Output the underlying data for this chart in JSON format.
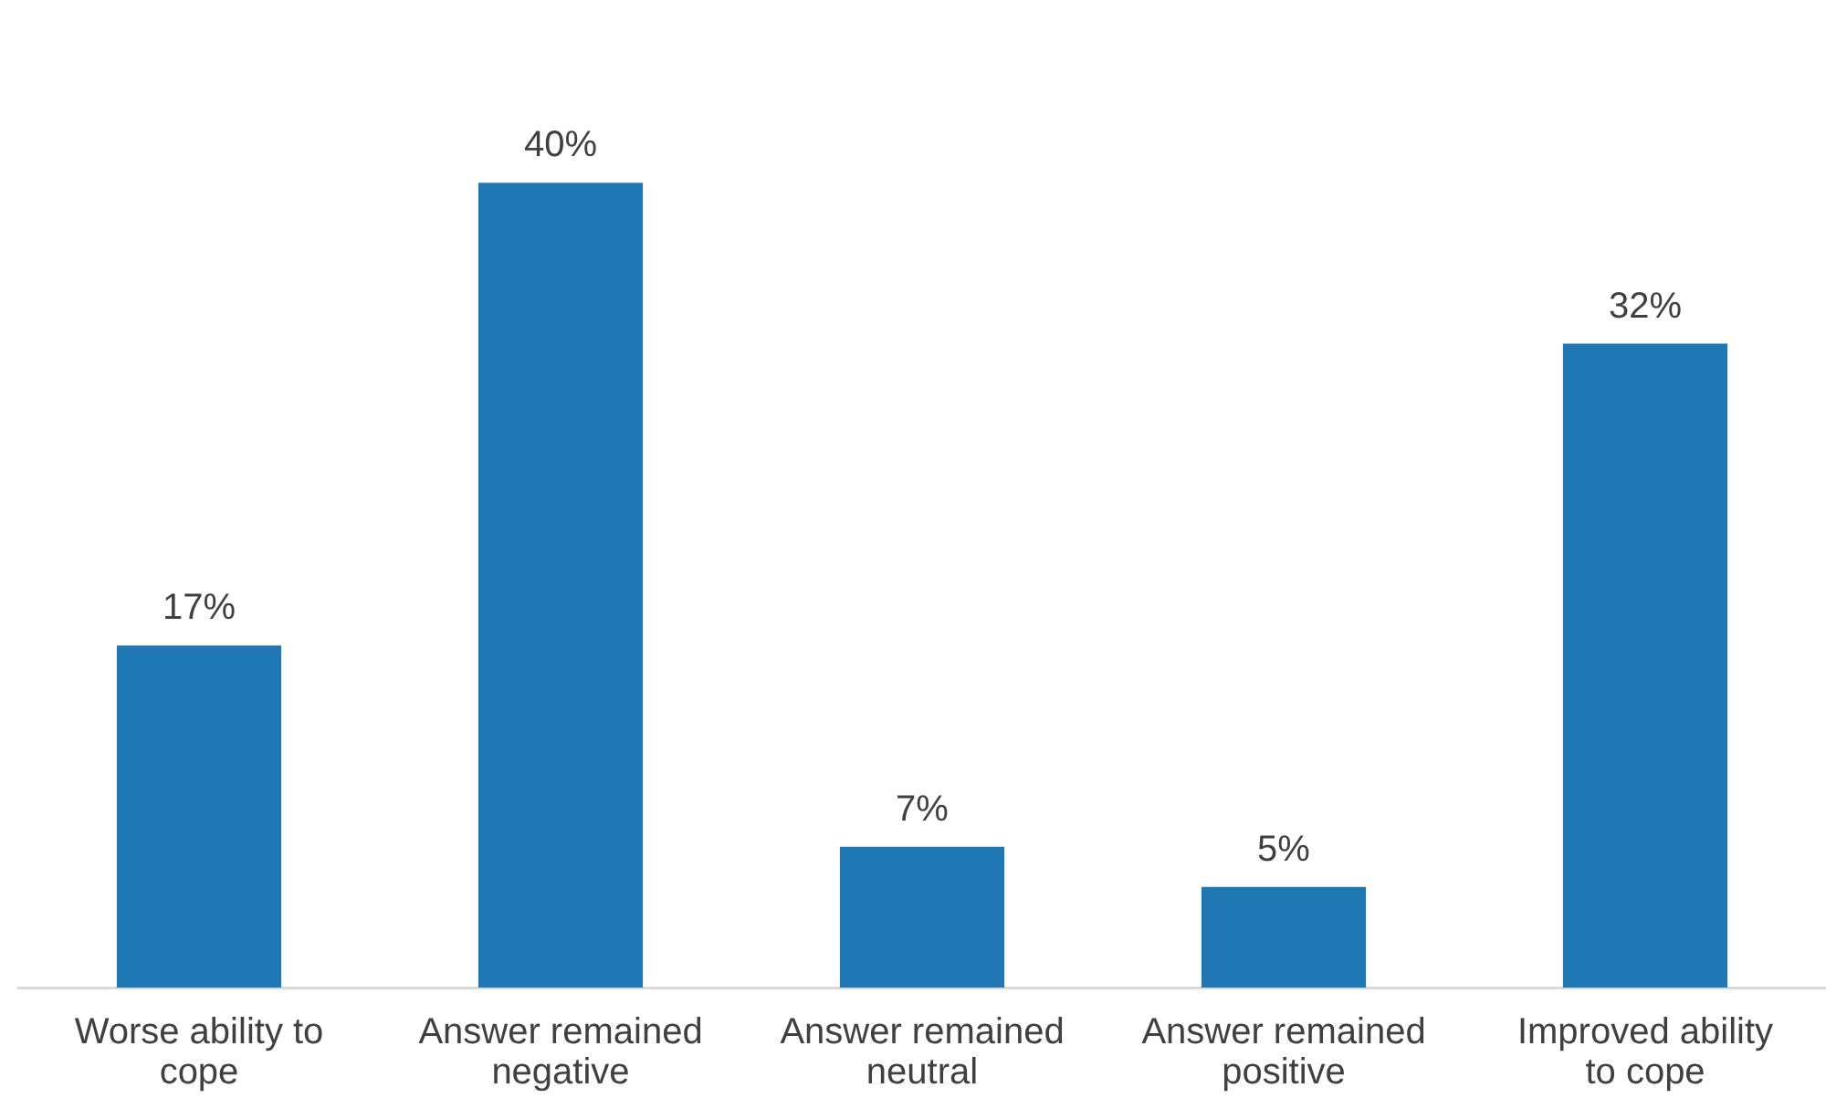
{
  "chart_data": {
    "type": "bar",
    "categories": [
      "Worse ability to cope",
      "Answer remained negative",
      "Answer remained neutral",
      "Answer remained positive",
      "Improved ability to cope"
    ],
    "values": [
      17,
      40,
      7,
      5,
      32
    ],
    "value_labels": [
      "17%",
      "40%",
      "7%",
      "5%",
      "32%"
    ],
    "color": "#1f77b4",
    "grid": false,
    "legend": false
  }
}
